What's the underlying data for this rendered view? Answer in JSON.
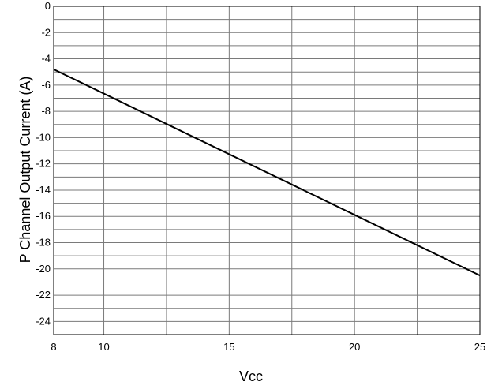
{
  "chart_data": {
    "type": "line",
    "xlabel": "Vcc",
    "ylabel": "P Channel Output Current (A)",
    "xlim": [
      8,
      25
    ],
    "ylim": [
      -25,
      0
    ],
    "x_ticks": [
      8,
      10,
      15,
      20,
      25
    ],
    "x_tick_labels": [
      "8",
      "10",
      "15",
      "20",
      "25"
    ],
    "y_ticks": [
      0,
      -2,
      -4,
      -6,
      -8,
      -10,
      -12,
      -14,
      -16,
      -18,
      -20,
      -22,
      -24
    ],
    "y_tick_labels": [
      "0",
      "-2",
      "-4",
      "-6",
      "-8",
      "-10",
      "-12",
      "-14",
      "-16",
      "-18",
      "-20",
      "-22",
      "-24"
    ],
    "grid": true,
    "series": [
      {
        "x": [
          8,
          25
        ],
        "y": [
          -4.8,
          -20.5
        ]
      }
    ]
  }
}
